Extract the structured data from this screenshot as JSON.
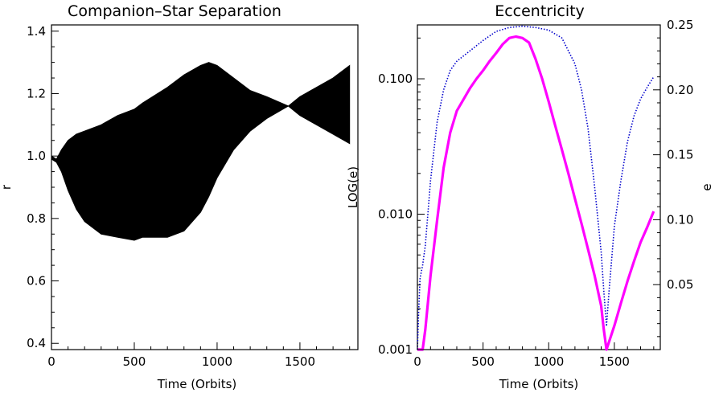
{
  "chart_data": [
    {
      "type": "area",
      "title": "Companion–Star Separation",
      "xlabel": "Time (Orbits)",
      "ylabel": "r",
      "xlim": [
        0,
        1850
      ],
      "ylim": [
        0.38,
        1.42
      ],
      "xticks": [
        0,
        500,
        1000,
        1500
      ],
      "xtick_labels": [
        "0",
        "500",
        "1000",
        "1500"
      ],
      "yticks": [
        0.4,
        0.6,
        0.8,
        1.0,
        1.2,
        1.4
      ],
      "ytick_labels": [
        "0.4",
        "0.6",
        "0.8",
        "1.0",
        "1.2",
        "1.4"
      ],
      "grid": false,
      "series": [
        {
          "color": "#000000",
          "x": [
            0,
            30,
            60,
            100,
            150,
            200,
            300,
            400,
            500,
            550,
            700,
            800,
            900,
            950,
            1000,
            1100,
            1200,
            1300,
            1430,
            1500,
            1600,
            1700,
            1800
          ],
          "upper": [
            1.0,
            0.99,
            1.02,
            1.05,
            1.07,
            1.08,
            1.1,
            1.13,
            1.15,
            1.17,
            1.22,
            1.26,
            1.29,
            1.3,
            1.29,
            1.25,
            1.21,
            1.19,
            1.16,
            1.19,
            1.22,
            1.25,
            1.29
          ],
          "lower": [
            0.99,
            0.98,
            0.95,
            0.89,
            0.83,
            0.79,
            0.75,
            0.74,
            0.73,
            0.74,
            0.74,
            0.76,
            0.82,
            0.87,
            0.93,
            1.02,
            1.08,
            1.12,
            1.16,
            1.13,
            1.1,
            1.07,
            1.04
          ]
        }
      ]
    },
    {
      "type": "line",
      "title": "Eccentricity",
      "xlabel": "Time (Orbits)",
      "ylabel": "LOG(e)",
      "ylabel_right": "e",
      "xlim": [
        0,
        1850
      ],
      "ylim_log": [
        0.001,
        0.25
      ],
      "ylim_right": [
        0,
        0.25
      ],
      "xticks": [
        0,
        500,
        1000,
        1500
      ],
      "xtick_labels": [
        "0",
        "500",
        "1000",
        "1500"
      ],
      "yticks_left": [
        0.001,
        0.01,
        0.1
      ],
      "ytick_labels_left": [
        "0.001",
        "0.010",
        "0.100"
      ],
      "yticks_right": [
        0.05,
        0.1,
        0.15,
        0.2,
        0.25
      ],
      "ytick_labels_right": [
        "0.05",
        "0.10",
        "0.15",
        "0.20",
        "0.25"
      ],
      "grid": false,
      "series": [
        {
          "axis": "left-log",
          "color": "#ff00ff",
          "style": "solid",
          "x": [
            0,
            20,
            40,
            60,
            100,
            150,
            200,
            250,
            300,
            350,
            400,
            450,
            500,
            550,
            600,
            650,
            700,
            750,
            800,
            850,
            900,
            950,
            1000,
            1050,
            1100,
            1150,
            1200,
            1250,
            1300,
            1350,
            1400,
            1420,
            1440,
            1500,
            1550,
            1600,
            1650,
            1700,
            1750,
            1800
          ],
          "y": [
            0.001,
            0.0009,
            0.001,
            0.0014,
            0.0035,
            0.009,
            0.022,
            0.04,
            0.058,
            0.07,
            0.085,
            0.1,
            0.115,
            0.135,
            0.155,
            0.18,
            0.2,
            0.205,
            0.2,
            0.185,
            0.14,
            0.1,
            0.068,
            0.045,
            0.03,
            0.02,
            0.013,
            0.0085,
            0.0055,
            0.0035,
            0.0021,
            0.0014,
            0.0009,
            0.0015,
            0.0022,
            0.0032,
            0.0045,
            0.0062,
            0.008,
            0.0105
          ]
        },
        {
          "axis": "right-linear",
          "color": "#0000cc",
          "style": "dotted",
          "x": [
            0,
            10,
            20,
            40,
            60,
            80,
            100,
            150,
            200,
            250,
            300,
            400,
            500,
            600,
            700,
            800,
            900,
            1000,
            1100,
            1200,
            1250,
            1300,
            1350,
            1400,
            1420,
            1440,
            1460,
            1500,
            1550,
            1600,
            1650,
            1700,
            1750,
            1800
          ],
          "y": [
            0.0,
            0.03,
            0.055,
            0.065,
            0.08,
            0.105,
            0.13,
            0.175,
            0.2,
            0.215,
            0.222,
            0.23,
            0.238,
            0.245,
            0.248,
            0.249,
            0.248,
            0.246,
            0.24,
            0.22,
            0.2,
            0.17,
            0.125,
            0.075,
            0.045,
            0.018,
            0.045,
            0.095,
            0.13,
            0.16,
            0.18,
            0.193,
            0.202,
            0.21
          ]
        }
      ]
    }
  ]
}
